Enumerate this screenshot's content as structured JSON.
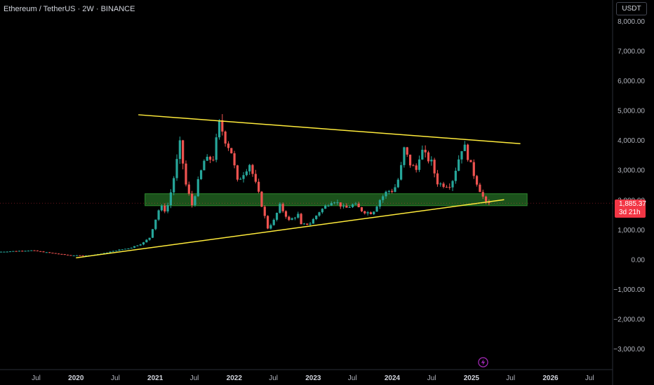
{
  "header": {
    "symbol_title": "Ethereum / TetherUS · 2W · BINANCE",
    "currency": "USDT"
  },
  "last_price": {
    "value_label": "1,885.37",
    "countdown": "3d 21h",
    "color": "#f23645"
  },
  "icons": {
    "flash": "lightning-icon"
  },
  "colors": {
    "up": "#26a69a",
    "down": "#ef5350",
    "trendline": "#ffeb3b",
    "zone_fill": "#1e5a1e",
    "zone_border": "#2e8b2e",
    "axis_text": "#b2b5be"
  },
  "chart_data": {
    "type": "candlestick",
    "title": "Ethereum / TetherUS · 2W · BINANCE",
    "xlabel": "",
    "ylabel": "",
    "xlim": [
      "2019-01-15",
      "2026-10-15"
    ],
    "ylim": [
      -3700,
      8700
    ],
    "grid": false,
    "x_tick_labels": [
      "Jul",
      "2020",
      "Jul",
      "2021",
      "Jul",
      "2022",
      "Jul",
      "2023",
      "Jul",
      "2024",
      "Jul",
      "2025",
      "Jul",
      "2026",
      "Jul"
    ],
    "x_tick_dates": [
      "2019-07-01",
      "2020-01-01",
      "2020-07-01",
      "2021-01-01",
      "2021-07-01",
      "2022-01-01",
      "2022-07-01",
      "2023-01-01",
      "2023-07-01",
      "2024-01-01",
      "2024-07-01",
      "2025-01-01",
      "2025-07-01",
      "2026-01-01",
      "2026-07-01"
    ],
    "y_tick_labels": [
      "8,000.00",
      "7,000.00",
      "6,000.00",
      "5,000.00",
      "4,000.00",
      "3,000.00",
      "2,000.00",
      "1,000.00",
      "0.00",
      "−1,000.00",
      "−2,000.00",
      "−3,000.00"
    ],
    "y_tick_values": [
      8000,
      7000,
      6000,
      5000,
      4000,
      3000,
      2000,
      1000,
      0,
      -1000,
      -2000,
      -3000
    ],
    "last_price": 1885.37,
    "anchors": [
      [
        "2019-01-20",
        250
      ],
      [
        "2019-06-20",
        300
      ],
      [
        "2019-12-20",
        130
      ],
      [
        "2020-03-15",
        130
      ],
      [
        "2020-05-20",
        200
      ],
      [
        "2020-07-20",
        300
      ],
      [
        "2020-09-20",
        380
      ],
      [
        "2020-11-20",
        550
      ],
      [
        "2020-12-20",
        730
      ],
      [
        "2021-01-10",
        1200
      ],
      [
        "2021-02-07",
        1800
      ],
      [
        "2021-03-07",
        1600
      ],
      [
        "2021-04-05",
        2500
      ],
      [
        "2021-05-10",
        3900
      ],
      [
        "2021-06-06",
        2500
      ],
      [
        "2021-07-05",
        1800
      ],
      [
        "2021-08-01",
        2600
      ],
      [
        "2021-08-29",
        3300
      ],
      [
        "2021-10-10",
        3400
      ],
      [
        "2021-11-08",
        4600
      ],
      [
        "2021-12-05",
        4000
      ],
      [
        "2022-01-02",
        3600
      ],
      [
        "2022-01-30",
        2600
      ],
      [
        "2022-03-27",
        3200
      ],
      [
        "2022-05-08",
        2200
      ],
      [
        "2022-06-19",
        1050
      ],
      [
        "2022-07-17",
        1300
      ],
      [
        "2022-08-14",
        1800
      ],
      [
        "2022-09-25",
        1300
      ],
      [
        "2022-11-06",
        1500
      ],
      [
        "2022-11-20",
        1150
      ],
      [
        "2022-12-31",
        1200
      ],
      [
        "2023-02-12",
        1600
      ],
      [
        "2023-04-16",
        2000
      ],
      [
        "2023-06-11",
        1700
      ],
      [
        "2023-07-23",
        1850
      ],
      [
        "2023-09-03",
        1600
      ],
      [
        "2023-10-15",
        1550
      ],
      [
        "2023-11-19",
        2000
      ],
      [
        "2023-12-24",
        2300
      ],
      [
        "2024-01-21",
        2300
      ],
      [
        "2024-02-18",
        2800
      ],
      [
        "2024-03-10",
        3700
      ],
      [
        "2024-04-07",
        3200
      ],
      [
        "2024-05-05",
        3000
      ],
      [
        "2024-05-26",
        3700
      ],
      [
        "2024-06-23",
        3400
      ],
      [
        "2024-07-21",
        3200
      ],
      [
        "2024-08-04",
        2600
      ],
      [
        "2024-09-01",
        2500
      ],
      [
        "2024-10-13",
        2500
      ],
      [
        "2024-11-10",
        3200
      ],
      [
        "2024-12-08",
        3900
      ],
      [
        "2025-01-05",
        3300
      ],
      [
        "2025-02-02",
        2700
      ],
      [
        "2025-03-02",
        2200
      ],
      [
        "2025-03-23",
        1885
      ]
    ],
    "trendlines": [
      {
        "name": "",
        "color": "#ffeb3b",
        "points": [
          [
            "2020-01-01",
            50
          ],
          [
            "2025-06-01",
            2000
          ]
        ]
      },
      {
        "name": "",
        "color": "#ffeb3b",
        "points": [
          [
            "2020-10-15",
            4850
          ],
          [
            "2025-08-15",
            3880
          ]
        ]
      }
    ],
    "zones": [
      {
        "name": "",
        "color": "#1e5a1e",
        "x_range": [
          "2020-11-15",
          "2025-09-15"
        ],
        "y_range": [
          1800,
          2200
        ]
      }
    ]
  }
}
